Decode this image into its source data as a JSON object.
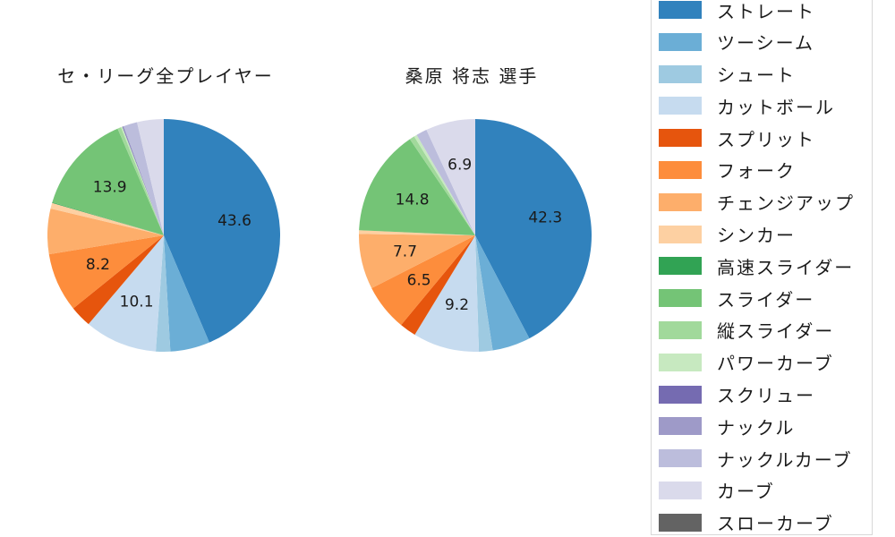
{
  "chart_data": [
    {
      "type": "pie",
      "title": "セ・リーグ全プレイヤー",
      "direction": "clockwise",
      "start_angle_deg": 0,
      "legend_position": "right",
      "background": "#ffffff",
      "labels": [
        "ストレート",
        "ツーシーム",
        "シュート",
        "カットボール",
        "スプリット",
        "フォーク",
        "チェンジアップ",
        "シンカー",
        "高速スライダー",
        "スライダー",
        "縦スライダー",
        "パワーカーブ",
        "スクリュー",
        "ナックル",
        "ナックルカーブ",
        "カーブ",
        "スローカーブ"
      ],
      "values": [
        43.6,
        5.5,
        2.0,
        10.1,
        3.0,
        8.2,
        6.3,
        0.8,
        0.1,
        13.9,
        0.5,
        0.2,
        0.1,
        0.1,
        1.9,
        3.7,
        0.0
      ],
      "shown_labels": [
        "43.6",
        "",
        "",
        "10.1",
        "",
        "8.2",
        "",
        "",
        "",
        "13.9",
        "",
        "",
        "",
        "",
        "",
        "",
        ""
      ]
    },
    {
      "type": "pie",
      "title": "桑原 将志 選手",
      "direction": "clockwise",
      "start_angle_deg": 0,
      "legend_position": "right",
      "background": "#ffffff",
      "labels": [
        "ストレート",
        "ツーシーム",
        "シュート",
        "カットボール",
        "スプリット",
        "フォーク",
        "チェンジアップ",
        "シンカー",
        "高速スライダー",
        "スライダー",
        "縦スライダー",
        "パワーカーブ",
        "スクリュー",
        "ナックル",
        "ナックルカーブ",
        "カーブ",
        "スローカーブ"
      ],
      "values": [
        42.3,
        5.3,
        1.9,
        9.2,
        2.3,
        6.5,
        7.7,
        0.5,
        0.0,
        14.8,
        0.7,
        0.4,
        0.0,
        0.0,
        1.5,
        6.9,
        0.0
      ],
      "shown_labels": [
        "42.3",
        "",
        "",
        "9.2",
        "",
        "6.5",
        "7.7",
        "",
        "",
        "14.8",
        "",
        "",
        "",
        "",
        "",
        "6.9",
        ""
      ]
    }
  ],
  "legend": {
    "items": [
      {
        "label": "ストレート",
        "color": "#3182bd"
      },
      {
        "label": "ツーシーム",
        "color": "#6baed6"
      },
      {
        "label": "シュート",
        "color": "#9ecae1"
      },
      {
        "label": "カットボール",
        "color": "#c6dbef"
      },
      {
        "label": "スプリット",
        "color": "#e6550d"
      },
      {
        "label": "フォーク",
        "color": "#fd8d3c"
      },
      {
        "label": "チェンジアップ",
        "color": "#fdae6b"
      },
      {
        "label": "シンカー",
        "color": "#fdd0a2"
      },
      {
        "label": "高速スライダー",
        "color": "#31a354"
      },
      {
        "label": "スライダー",
        "color": "#74c476"
      },
      {
        "label": "縦スライダー",
        "color": "#a1d99b"
      },
      {
        "label": "パワーカーブ",
        "color": "#c7e9c0"
      },
      {
        "label": "スクリュー",
        "color": "#756bb1"
      },
      {
        "label": "ナックル",
        "color": "#9e9ac8"
      },
      {
        "label": "ナックルカーブ",
        "color": "#bcbddc"
      },
      {
        "label": "カーブ",
        "color": "#dadaeb"
      },
      {
        "label": "スローカーブ",
        "color": "#636363"
      }
    ],
    "border_color": "#d8d8d8"
  }
}
